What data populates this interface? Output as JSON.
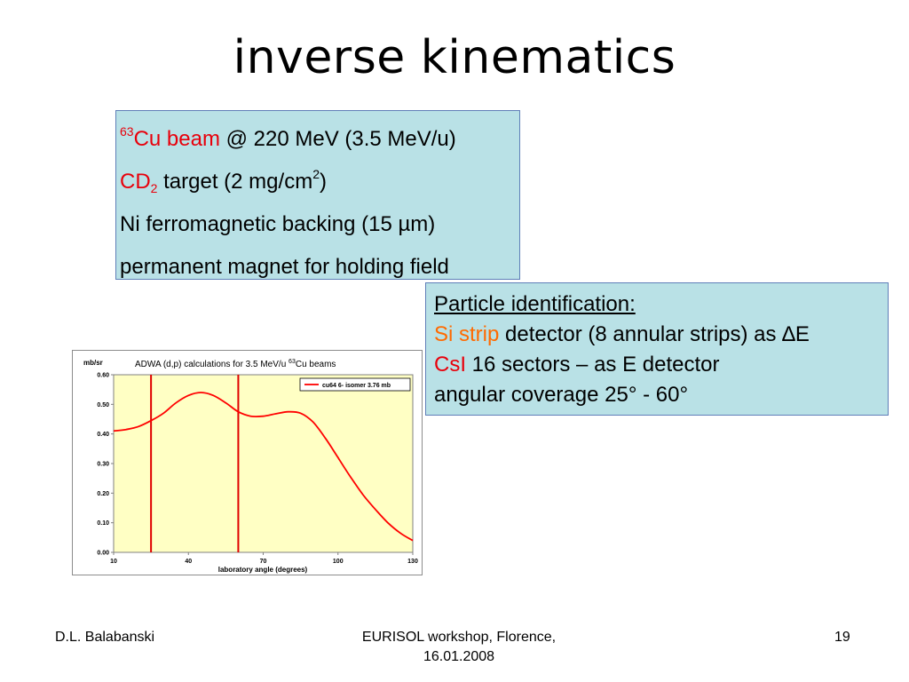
{
  "slide": {
    "title": "inverse kinematics"
  },
  "beam_box": {
    "line1": {
      "mass_number": "63",
      "beam_label": "Cu beam",
      "rest": " @ 220 MeV (3.5 MeV/u)"
    },
    "line2": {
      "target_label": "CD",
      "target_sub": "2",
      "rest": " target (2 mg/cm",
      "unit_sup": "2",
      "close": ")"
    },
    "line3": "Ni ferromagnetic backing (15 µm)",
    "line4": "permanent magnet for holding field"
  },
  "pid_box": {
    "heading": "Particle identification:",
    "line1": {
      "highlight": "Si strip",
      "rest": " detector (8 annular strips) as ∆E"
    },
    "line2": {
      "highlight": "CsI",
      "rest": " 16 sectors – as E detector"
    },
    "line3": "angular coverage 25° - 60°"
  },
  "colors": {
    "red": "#e8000b",
    "orange": "#ff6a00",
    "box_fill": "#b9e1e6",
    "plot_area": "#ffffc4",
    "series": "#ff0000"
  },
  "chart_data": {
    "type": "line",
    "title_prefix": "ADWA (d,p) calculations for 3.5 MeV/u ",
    "title_sup": "63",
    "title_suffix": "Cu beams",
    "ylabel": "mb/sr",
    "xlabel": "laboratory angle (degrees)",
    "xlim": [
      10,
      130
    ],
    "ylim": [
      0.0,
      0.6
    ],
    "x_ticks": [
      "10",
      "40",
      "70",
      "100",
      "130"
    ],
    "y_ticks": [
      "0.00",
      "0.10",
      "0.20",
      "0.30",
      "0.40",
      "0.50",
      "0.60"
    ],
    "grid": false,
    "legend_position": "top-right",
    "series": [
      {
        "name": "cu64 6- isomer 3.76 mb",
        "x": [
          10,
          15,
          20,
          25,
          30,
          35,
          40,
          45,
          50,
          55,
          60,
          65,
          70,
          75,
          80,
          85,
          90,
          95,
          100,
          105,
          110,
          115,
          120,
          125,
          130
        ],
        "values": [
          0.41,
          0.415,
          0.425,
          0.445,
          0.47,
          0.505,
          0.53,
          0.54,
          0.53,
          0.505,
          0.475,
          0.46,
          0.46,
          0.468,
          0.475,
          0.47,
          0.44,
          0.385,
          0.32,
          0.255,
          0.195,
          0.145,
          0.1,
          0.065,
          0.04
        ]
      }
    ],
    "marker_lines_x": [
      25,
      60
    ]
  },
  "footer": {
    "author": "D.L. Balabanski",
    "event_line1": "EURISOL workshop, Florence,",
    "event_line2": "16.01.2008",
    "page_number": "19"
  }
}
